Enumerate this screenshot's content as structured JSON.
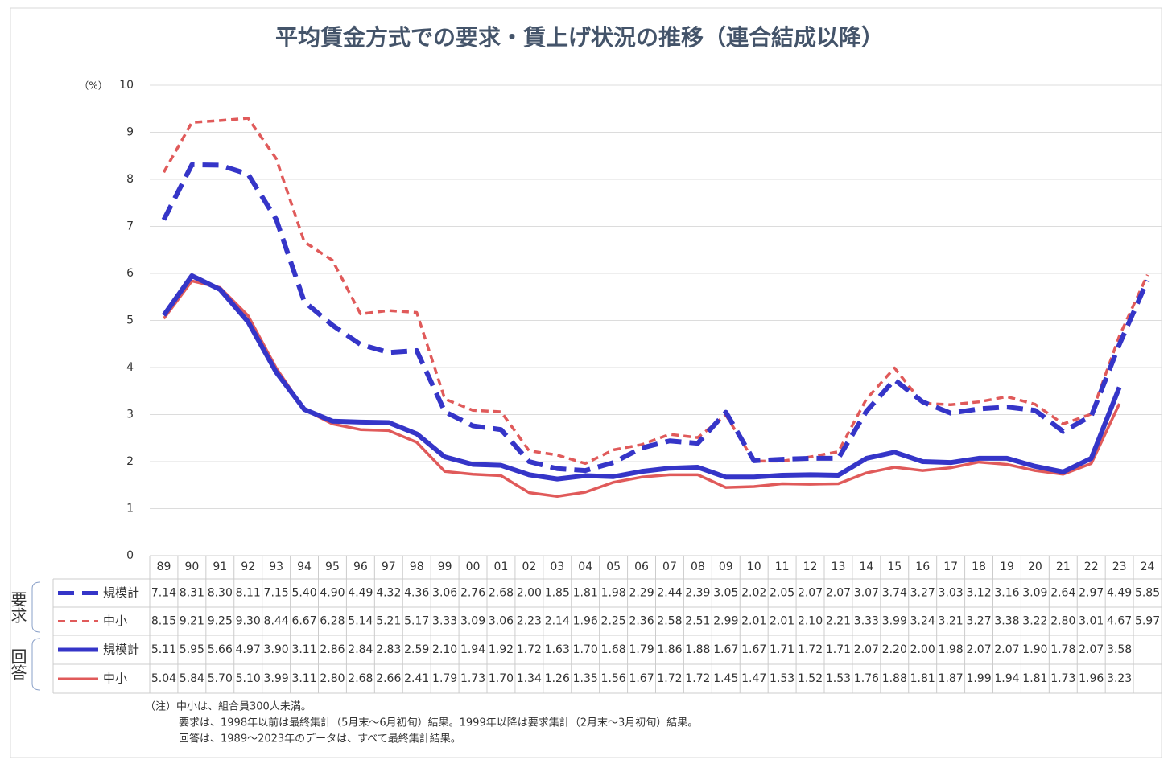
{
  "chart_data": {
    "type": "line",
    "title": "平均賃金方式での要求・賃上げ状況の推移（連合結成以降）",
    "y_label": "（%）",
    "ylim": [
      0,
      10
    ],
    "yticks": [
      0,
      1,
      2,
      3,
      4,
      5,
      6,
      7,
      8,
      9,
      10
    ],
    "grid": true,
    "categories": [
      "89",
      "90",
      "91",
      "92",
      "93",
      "94",
      "95",
      "96",
      "97",
      "98",
      "99",
      "00",
      "01",
      "02",
      "03",
      "04",
      "05",
      "06",
      "07",
      "08",
      "09",
      "10",
      "11",
      "12",
      "13",
      "14",
      "15",
      "16",
      "17",
      "18",
      "19",
      "20",
      "21",
      "22",
      "23",
      "24"
    ],
    "groups": [
      "要求",
      "回答"
    ],
    "series": [
      {
        "name": "規模計",
        "color": "#3535c8",
        "style": "dashed",
        "values": [
          7.14,
          8.31,
          8.3,
          8.11,
          7.15,
          5.4,
          4.9,
          4.49,
          4.32,
          4.36,
          3.06,
          2.76,
          2.68,
          2.0,
          1.85,
          1.81,
          1.98,
          2.29,
          2.44,
          2.39,
          3.05,
          2.02,
          2.05,
          2.07,
          2.07,
          3.07,
          3.74,
          3.27,
          3.03,
          3.12,
          3.16,
          3.09,
          2.64,
          2.97,
          4.49,
          5.85
        ],
        "value_labels": [
          "7.14",
          "8.31",
          "8.30",
          "8.11",
          "7.15",
          "5.40",
          "4.90",
          "4.49",
          "4.32",
          "4.36",
          "3.06",
          "2.76",
          "2.68",
          "2.00",
          "1.85",
          "1.81",
          "1.98",
          "2.29",
          "2.44",
          "2.39",
          "3.05",
          "2.02",
          "2.05",
          "2.07",
          "2.07",
          "3.07",
          "3.74",
          "3.27",
          "3.03",
          "3.12",
          "3.16",
          "3.09",
          "2.64",
          "2.97",
          "4.49",
          "5.85"
        ]
      },
      {
        "name": "中小",
        "color": "#e05a5a",
        "style": "dashed",
        "values": [
          8.15,
          9.21,
          9.25,
          9.3,
          8.44,
          6.67,
          6.28,
          5.14,
          5.21,
          5.17,
          3.33,
          3.09,
          3.06,
          2.23,
          2.14,
          1.96,
          2.25,
          2.36,
          2.58,
          2.51,
          2.99,
          2.01,
          2.01,
          2.1,
          2.21,
          3.33,
          3.99,
          3.24,
          3.21,
          3.27,
          3.38,
          3.22,
          2.8,
          3.01,
          4.67,
          5.97
        ],
        "value_labels": [
          "8.15",
          "9.21",
          "9.25",
          "9.30",
          "8.44",
          "6.67",
          "6.28",
          "5.14",
          "5.21",
          "5.17",
          "3.33",
          "3.09",
          "3.06",
          "2.23",
          "2.14",
          "1.96",
          "2.25",
          "2.36",
          "2.58",
          "2.51",
          "2.99",
          "2.01",
          "2.01",
          "2.10",
          "2.21",
          "3.33",
          "3.99",
          "3.24",
          "3.21",
          "3.27",
          "3.38",
          "3.22",
          "2.80",
          "3.01",
          "4.67",
          "5.97"
        ]
      },
      {
        "name": "規模計",
        "color": "#3535c8",
        "style": "solid",
        "values": [
          5.11,
          5.95,
          5.66,
          4.97,
          3.9,
          3.11,
          2.86,
          2.84,
          2.83,
          2.59,
          2.1,
          1.94,
          1.92,
          1.72,
          1.63,
          1.7,
          1.68,
          1.79,
          1.86,
          1.88,
          1.67,
          1.67,
          1.71,
          1.72,
          1.71,
          2.07,
          2.2,
          2.0,
          1.98,
          2.07,
          2.07,
          1.9,
          1.78,
          2.07,
          3.58,
          null
        ],
        "value_labels": [
          "5.11",
          "5.95",
          "5.66",
          "4.97",
          "3.90",
          "3.11",
          "2.86",
          "2.84",
          "2.83",
          "2.59",
          "2.10",
          "1.94",
          "1.92",
          "1.72",
          "1.63",
          "1.70",
          "1.68",
          "1.79",
          "1.86",
          "1.88",
          "1.67",
          "1.67",
          "1.71",
          "1.72",
          "1.71",
          "2.07",
          "2.20",
          "2.00",
          "1.98",
          "2.07",
          "2.07",
          "1.90",
          "1.78",
          "2.07",
          "3.58",
          null
        ]
      },
      {
        "name": "中小",
        "color": "#e05a5a",
        "style": "solid",
        "values": [
          5.04,
          5.84,
          5.7,
          5.1,
          3.99,
          3.11,
          2.8,
          2.68,
          2.66,
          2.41,
          1.79,
          1.73,
          1.7,
          1.34,
          1.26,
          1.35,
          1.56,
          1.67,
          1.72,
          1.72,
          1.45,
          1.47,
          1.53,
          1.52,
          1.53,
          1.76,
          1.88,
          1.81,
          1.87,
          1.99,
          1.94,
          1.81,
          1.73,
          1.96,
          3.23,
          null
        ],
        "value_labels": [
          "5.04",
          "5.84",
          "5.70",
          "5.10",
          "3.99",
          "3.11",
          "2.80",
          "2.68",
          "2.66",
          "2.41",
          "1.79",
          "1.73",
          "1.70",
          "1.34",
          "1.26",
          "1.35",
          "1.56",
          "1.67",
          "1.72",
          "1.72",
          "1.45",
          "1.47",
          "1.53",
          "1.52",
          "1.53",
          "1.76",
          "1.88",
          "1.81",
          "1.87",
          "1.99",
          "1.94",
          "1.81",
          "1.73",
          "1.96",
          "3.23",
          null
        ]
      }
    ],
    "notes": [
      "（注）中小は、組合員300人未満。",
      "要求は、1998年以前は最終集計（5月末〜6月初旬）結果。1999年以降は要求集計（2月末〜3月初旬）結果。",
      "回答は、1989〜2023年のデータは、すべて最終集計結果。"
    ]
  }
}
